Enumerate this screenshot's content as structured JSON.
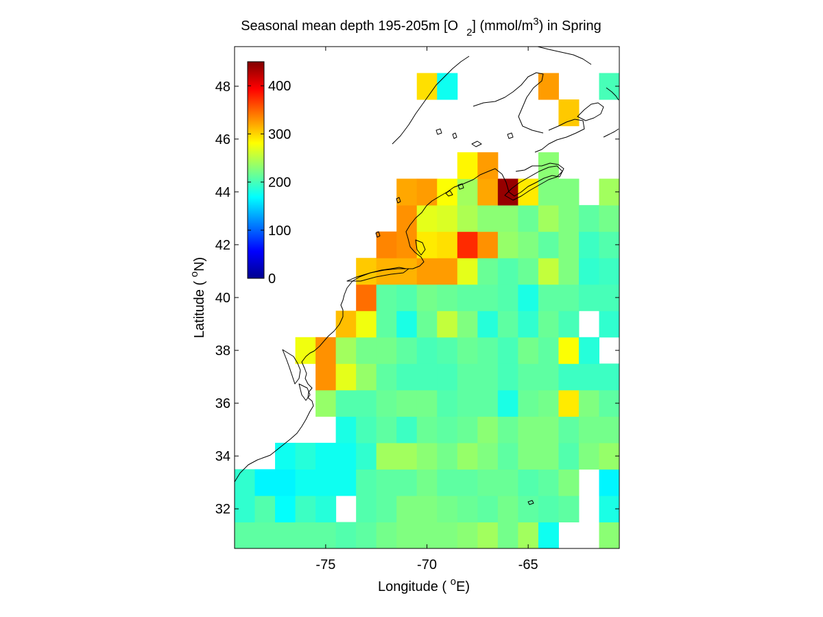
{
  "chart_data": {
    "type": "heatmap",
    "title": {
      "main": "Seasonal mean depth 195-205m [O",
      "sub": "2",
      "mid": "] (mmol/m",
      "sup": "3",
      "end": ") in  Spring"
    },
    "xlabel": {
      "pre": "Longitude ( ",
      "sup": "o",
      "post": "E)"
    },
    "ylabel": {
      "pre": "Latitude ( ",
      "sup": "o",
      "post": "N)"
    },
    "xlim": [
      -79.5,
      -60.5
    ],
    "ylim": [
      30.5,
      49.5
    ],
    "xticks": [
      -75,
      -70,
      -65
    ],
    "yticks": [
      32,
      34,
      36,
      38,
      40,
      42,
      44,
      46,
      48
    ],
    "grid": false,
    "colorbar": {
      "range": [
        0,
        450
      ],
      "ticks": [
        0,
        100,
        200,
        300,
        400
      ],
      "colormap": "jet",
      "placement": "top-left inside"
    },
    "cell_size_deg": 1,
    "grid_x0": -79.5,
    "grid_y0": 30.5,
    "rows": [
      {
        "lat_center": 31,
        "values": [
          210,
          210,
          210,
          210,
          210,
          205,
          210,
          220,
          225,
          225,
          225,
          230,
          240,
          220,
          240,
          175,
          null,
          null,
          230
        ]
      },
      {
        "lat_center": 32,
        "values": [
          190,
          205,
          170,
          195,
          185,
          null,
          205,
          210,
          225,
          225,
          220,
          215,
          210,
          220,
          210,
          205,
          210,
          null,
          180
        ]
      },
      {
        "lat_center": 33,
        "values": [
          190,
          165,
          165,
          175,
          175,
          175,
          205,
          210,
          210,
          220,
          210,
          210,
          215,
          215,
          205,
          210,
          225,
          null,
          165
        ]
      },
      {
        "lat_center": 34,
        "values": [
          null,
          null,
          175,
          185,
          175,
          175,
          190,
          240,
          240,
          230,
          220,
          235,
          225,
          210,
          225,
          225,
          205,
          225,
          235
        ]
      },
      {
        "lat_center": 35,
        "values": [
          null,
          null,
          null,
          null,
          null,
          180,
          200,
          210,
          195,
          215,
          210,
          215,
          230,
          215,
          225,
          225,
          210,
          220,
          220
        ]
      },
      {
        "lat_center": 36,
        "values": [
          null,
          null,
          null,
          null,
          235,
          205,
          205,
          215,
          220,
          220,
          205,
          210,
          210,
          180,
          215,
          220,
          290,
          225,
          210
        ]
      },
      {
        "lat_center": 37,
        "values": [
          null,
          null,
          null,
          null,
          330,
          270,
          235,
          210,
          200,
          200,
          200,
          210,
          210,
          200,
          210,
          210,
          195,
          195,
          195
        ]
      },
      {
        "lat_center": 38,
        "values": [
          null,
          null,
          null,
          275,
          330,
          240,
          220,
          220,
          210,
          200,
          205,
          215,
          210,
          200,
          220,
          210,
          280,
          185,
          null
        ]
      },
      {
        "lat_center": 39,
        "values": [
          null,
          null,
          null,
          null,
          null,
          310,
          275,
          210,
          180,
          215,
          255,
          225,
          185,
          210,
          190,
          215,
          200,
          null,
          190
        ]
      },
      {
        "lat_center": 40,
        "values": [
          null,
          null,
          null,
          null,
          null,
          null,
          345,
          210,
          205,
          220,
          215,
          210,
          210,
          205,
          180,
          210,
          210,
          200,
          200
        ]
      },
      {
        "lat_center": 41,
        "values": [
          null,
          null,
          null,
          null,
          null,
          null,
          305,
          315,
          315,
          325,
          325,
          270,
          215,
          205,
          215,
          255,
          225,
          190,
          195
        ]
      },
      {
        "lat_center": 42,
        "values": [
          null,
          null,
          null,
          null,
          null,
          null,
          null,
          335,
          330,
          290,
          295,
          375,
          330,
          235,
          225,
          210,
          225,
          195,
          205
        ]
      },
      {
        "lat_center": 43,
        "values": [
          null,
          null,
          null,
          null,
          null,
          null,
          null,
          null,
          330,
          270,
          265,
          245,
          230,
          230,
          215,
          240,
          225,
          210,
          220
        ]
      },
      {
        "lat_center": 44,
        "values": [
          null,
          null,
          null,
          null,
          null,
          null,
          null,
          null,
          320,
          325,
          280,
          240,
          320,
          440,
          290,
          225,
          225,
          null,
          240
        ]
      },
      {
        "lat_center": 45,
        "values": [
          null,
          null,
          null,
          null,
          null,
          null,
          null,
          null,
          null,
          null,
          null,
          285,
          325,
          null,
          null,
          230,
          null,
          null,
          null
        ]
      },
      {
        "lat_center": 48,
        "values": [
          null,
          null,
          null,
          null,
          null,
          null,
          null,
          null,
          null,
          295,
          175,
          null,
          null,
          null,
          null,
          325,
          null,
          null,
          200
        ]
      },
      {
        "lat_center": 47,
        "values": [
          null,
          null,
          null,
          null,
          null,
          null,
          null,
          null,
          null,
          null,
          null,
          null,
          null,
          null,
          null,
          null,
          305,
          null,
          null
        ]
      }
    ]
  }
}
